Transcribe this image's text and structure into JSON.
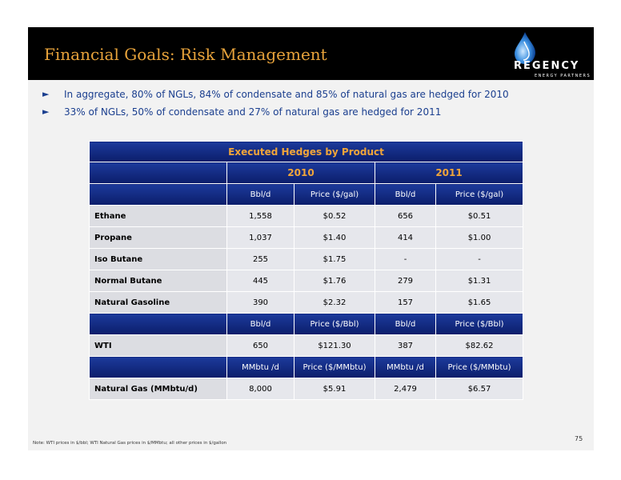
{
  "header": {
    "title": "Financial Goals: Risk Management",
    "logo": {
      "name": "REGENCY",
      "subtitle": "ENERGY PARTNERS"
    }
  },
  "bullets": [
    {
      "icon": "arrow-right-icon",
      "text": "In aggregate, 80% of NGLs, 84% of condensate and 85% of natural gas are hedged for 2010"
    },
    {
      "icon": "arrow-right-icon",
      "text": "33% of NGLs, 50% of condensate and 27% of natural gas are hedged for 2011"
    }
  ],
  "table": {
    "caption": "Executed Hedges by Product",
    "years": [
      "2010",
      "2011"
    ],
    "ngl_units": [
      "Bbl/d",
      "Price ($/gal)",
      "Bbl/d",
      "Price ($/gal)"
    ],
    "ngl_rows": [
      {
        "product": "Ethane",
        "values": [
          "1,558",
          "$0.52",
          "656",
          "$0.51"
        ]
      },
      {
        "product": "Propane",
        "values": [
          "1,037",
          "$1.40",
          "414",
          "$1.00"
        ]
      },
      {
        "product": "Iso Butane",
        "values": [
          "255",
          "$1.75",
          "-",
          "-"
        ]
      },
      {
        "product": "Normal Butane",
        "values": [
          "445",
          "$1.76",
          "279",
          "$1.31"
        ]
      },
      {
        "product": "Natural Gasoline",
        "values": [
          "390",
          "$2.32",
          "157",
          "$1.65"
        ]
      }
    ],
    "wti_units": [
      "Bbl/d",
      "Price ($/Bbl)",
      "Bbl/d",
      "Price ($/Bbl)"
    ],
    "wti_row": {
      "product": "WTI",
      "values": [
        "650",
        "$121.30",
        "387",
        "$82.62"
      ]
    },
    "gas_units": [
      "MMbtu /d",
      "Price ($/MMbtu)",
      "MMbtu /d",
      "Price ($/MMbtu)"
    ],
    "gas_row": {
      "product": "Natural Gas (MMbtu/d)",
      "values": [
        "8,000",
        "$5.91",
        "2,479",
        "$6.57"
      ]
    }
  },
  "footer": {
    "page_number": "75",
    "note": "Note:  WTI prices in $/bbl; WTI Natural Gas prices in $/MMbtu; all other prices in $/gallon"
  },
  "colors": {
    "title": "#e8a33b",
    "bullet_text": "#1b3f8f",
    "table_header_blue": "#0b1d6a",
    "caption_orange": "#f0a53a"
  }
}
